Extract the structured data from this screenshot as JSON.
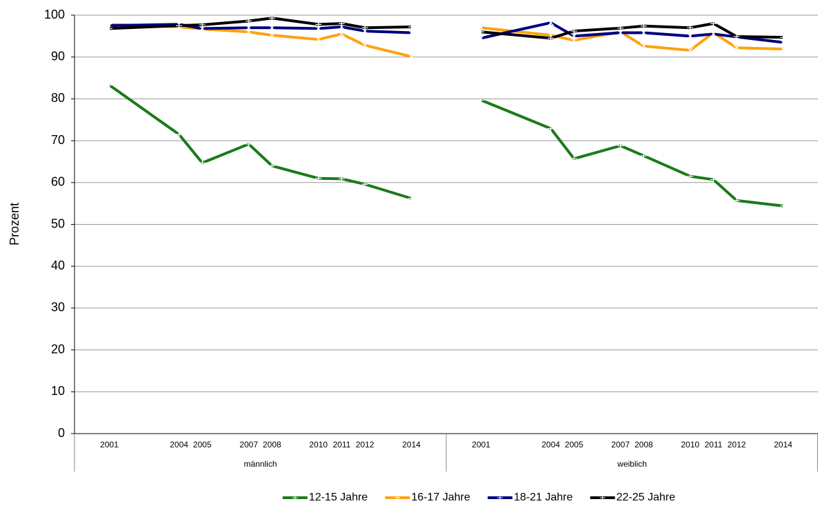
{
  "chart_data": {
    "type": "line",
    "y_label": "Prozent",
    "groups": [
      "männlich",
      "weiblich"
    ],
    "x": [
      2001,
      2004,
      2005,
      2007,
      2008,
      2010,
      2011,
      2012,
      2014
    ],
    "xlim": [
      2000,
      2015
    ],
    "ylim": [
      0,
      100
    ],
    "yticks": [
      0,
      10,
      20,
      30,
      40,
      50,
      60,
      70,
      80,
      90,
      100
    ],
    "grid": true,
    "legend": "bottom",
    "series": [
      {
        "name": "12-15 Jahre",
        "color": "#1a7a1a",
        "marker": "plus",
        "values": [
          [
            83.3,
            71.5,
            64.7,
            69.2,
            64.0,
            61.0,
            60.9,
            59.6,
            56.2
          ],
          [
            79.7,
            72.9,
            65.7,
            68.8,
            66.4,
            61.5,
            60.7,
            55.7,
            54.4
          ]
        ]
      },
      {
        "name": "16-17 Jahre",
        "color": "#ffa20f",
        "marker": "cross",
        "values": [
          [
            97.8,
            97.2,
            96.7,
            96.0,
            95.2,
            94.2,
            95.5,
            92.8,
            90.1
          ],
          [
            97.0,
            95.2,
            94.0,
            96.0,
            92.6,
            91.6,
            95.8,
            92.2,
            91.9
          ]
        ]
      },
      {
        "name": "18-21 Jahre",
        "color": "#000080",
        "marker": "star",
        "values": [
          [
            97.5,
            97.8,
            96.8,
            97.0,
            97.0,
            96.8,
            97.2,
            96.2,
            95.8
          ],
          [
            94.5,
            98.2,
            95.0,
            95.8,
            95.8,
            95.0,
            95.5,
            94.8,
            93.5
          ]
        ]
      },
      {
        "name": "22-25 Jahre",
        "color": "#000000",
        "marker": "plus",
        "values": [
          [
            96.8,
            97.5,
            97.7,
            98.6,
            99.3,
            97.8,
            98.0,
            97.0,
            97.2
          ],
          [
            96.0,
            94.5,
            96.2,
            96.9,
            97.4,
            97.0,
            98.0,
            94.9,
            94.7
          ]
        ]
      }
    ]
  }
}
